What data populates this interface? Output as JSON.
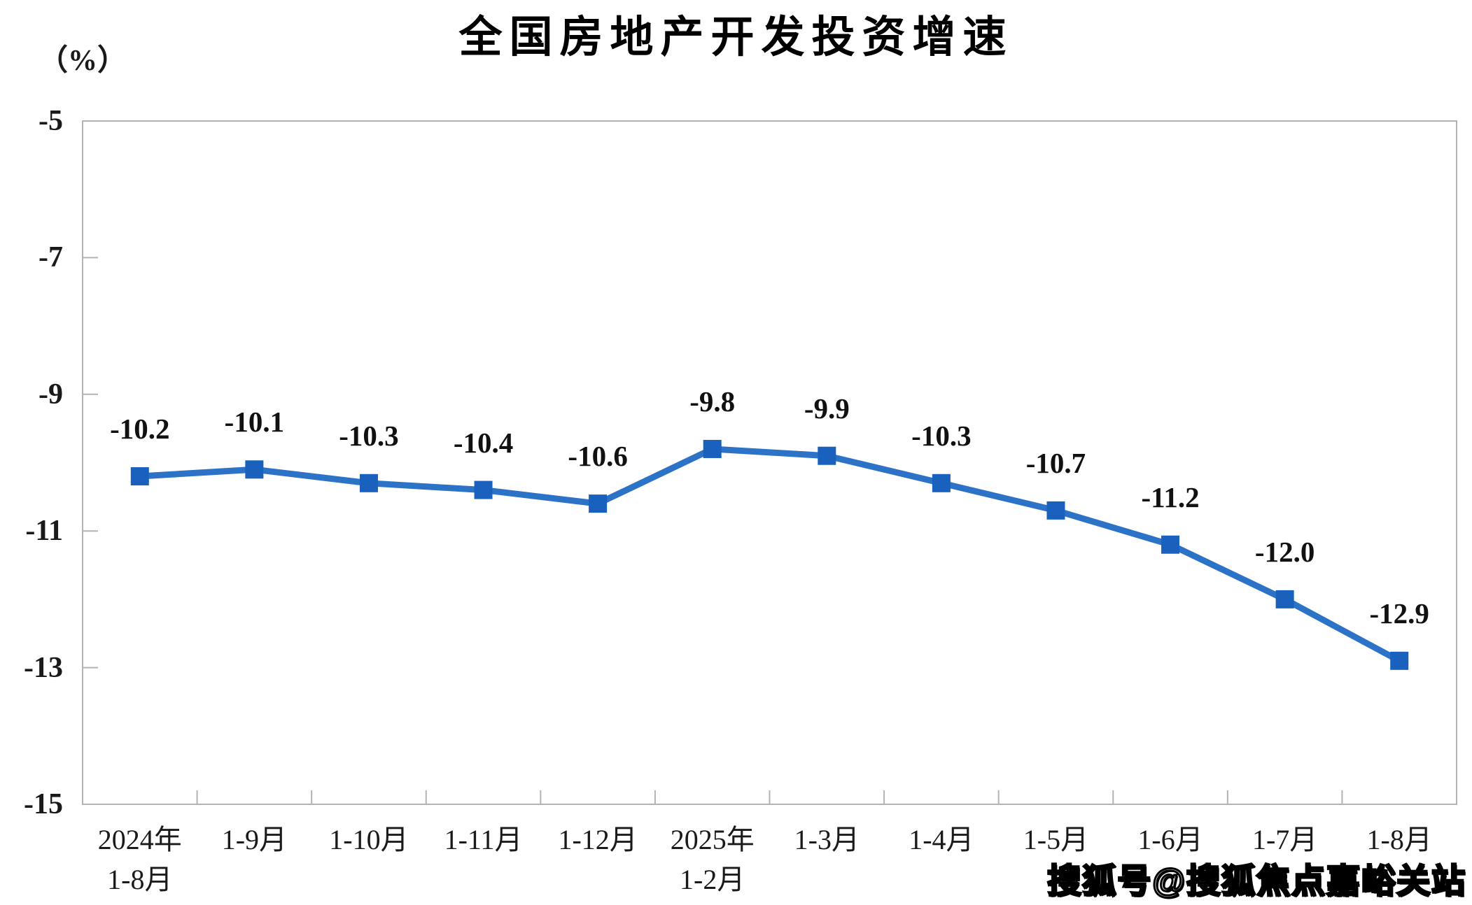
{
  "page": {
    "title": "全国房地产开发投资增速",
    "unit_label": "（%）",
    "watermark": "搜狐号@搜狐焦点嘉峪关站"
  },
  "chart_data": {
    "type": "line",
    "title": "全国房地产开发投资增速",
    "ylabel": "（%）",
    "categories": [
      "2024年\n1-8月",
      "1-9月",
      "1-10月",
      "1-11月",
      "1-12月",
      "2025年\n1-2月",
      "1-3月",
      "1-4月",
      "1-5月",
      "1-6月",
      "1-7月",
      "1-8月"
    ],
    "values": [
      -10.2,
      -10.1,
      -10.3,
      -10.4,
      -10.6,
      -9.8,
      -9.9,
      -10.3,
      -10.7,
      -11.2,
      -12.0,
      -12.9
    ],
    "data_labels": [
      "-10.2",
      "-10.1",
      "-10.3",
      "-10.4",
      "-10.6",
      "-9.8",
      "-9.9",
      "-10.3",
      "-10.7",
      "-11.2",
      "-12.0",
      "-12.9"
    ],
    "ylim": [
      -15,
      -5
    ],
    "y_ticks": [
      -5,
      -7,
      -9,
      -11,
      -13,
      -15
    ],
    "grid": false,
    "legend": false,
    "colors": {
      "line": "#2c73c8",
      "marker": "#1961bd",
      "axis": "#b3b3b3",
      "text": "#1a1a1a"
    }
  }
}
